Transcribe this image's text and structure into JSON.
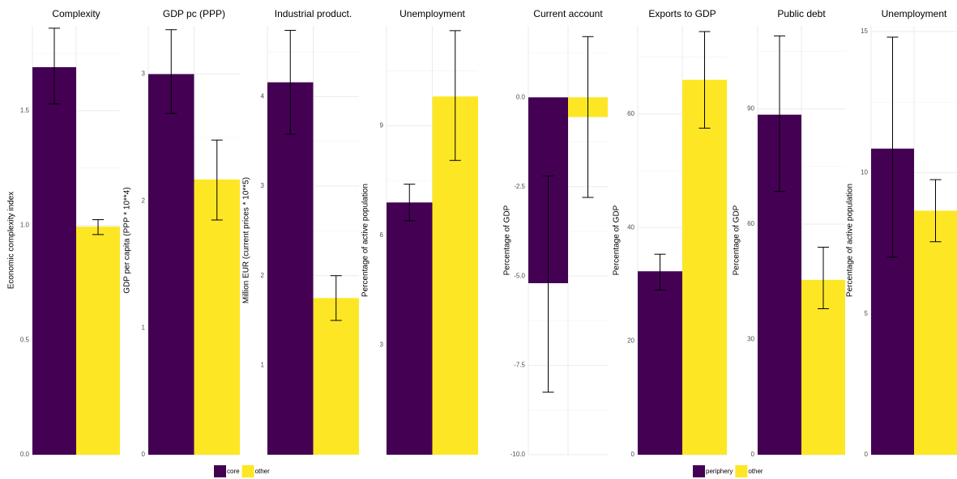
{
  "chart_data": [
    {
      "type": "bar",
      "title": "Complexity",
      "ylabel": "Economic complexity index",
      "ylim": [
        0,
        1.87
      ],
      "yticks": [
        {
          "value": 0,
          "label": "0.0"
        },
        {
          "value": 0.5,
          "label": "0.5"
        },
        {
          "value": 1,
          "label": "1.0"
        },
        {
          "value": 1.5,
          "label": "1.5"
        }
      ],
      "grid": true,
      "series": [
        {
          "name": "core",
          "color": "#440154",
          "values": [
            1.69
          ],
          "error_low": [
            1.53
          ],
          "error_high": [
            1.86
          ]
        },
        {
          "name": "other",
          "color": "#FDE725",
          "values": [
            0.995
          ],
          "error_low": [
            0.96
          ],
          "error_high": [
            1.025
          ]
        }
      ]
    },
    {
      "type": "bar",
      "title": "GDP pc (PPP)",
      "ylabel": "GDP per capita (PPP * 10**4)",
      "ylim": [
        0,
        3.38
      ],
      "yticks": [
        0,
        1,
        2,
        3
      ],
      "grid": true,
      "series": [
        {
          "name": "core",
          "color": "#440154",
          "values": [
            3.0
          ],
          "error_low": [
            2.69
          ],
          "error_high": [
            3.35
          ]
        },
        {
          "name": "other",
          "color": "#FDE725",
          "values": [
            2.17
          ],
          "error_low": [
            1.85
          ],
          "error_high": [
            2.48
          ]
        }
      ]
    },
    {
      "type": "bar",
      "title": "Industrial product.",
      "ylabel": "Million EUR (current prices * 10**5)",
      "ylim": [
        0,
        4.79
      ],
      "yticks": [
        1,
        2,
        3,
        4
      ],
      "grid": true,
      "series": [
        {
          "name": "core",
          "color": "#440154",
          "values": [
            4.16
          ],
          "error_low": [
            3.58
          ],
          "error_high": [
            4.74
          ]
        },
        {
          "name": "other",
          "color": "#FDE725",
          "values": [
            1.75
          ],
          "error_low": [
            1.5
          ],
          "error_high": [
            2.0
          ]
        }
      ]
    },
    {
      "type": "bar",
      "title": "Unemployment",
      "ylabel": "Percentage of active population",
      "ylim": [
        0,
        11.73
      ],
      "yticks": [
        3,
        6,
        9
      ],
      "grid": true,
      "series": [
        {
          "name": "core",
          "color": "#440154",
          "values": [
            6.9
          ],
          "error_low": [
            6.4
          ],
          "error_high": [
            7.4
          ]
        },
        {
          "name": "other",
          "color": "#FDE725",
          "values": [
            9.8
          ],
          "error_low": [
            8.05
          ],
          "error_high": [
            11.6
          ]
        }
      ]
    },
    {
      "type": "bar",
      "title": "Current account",
      "ylabel": "Percentage of GDP",
      "ylim": [
        -10,
        2.0
      ],
      "yticks": [
        {
          "value": -10,
          "label": "-10.0"
        },
        {
          "value": -7.5,
          "label": "-7.5"
        },
        {
          "value": -5,
          "label": "-5.0"
        },
        {
          "value": -2.5,
          "label": "-2.5"
        },
        {
          "value": 0,
          "label": "0.0"
        }
      ],
      "grid": true,
      "series": [
        {
          "name": "periphery",
          "color": "#440154",
          "values": [
            -5.2
          ],
          "error_low": [
            -8.25
          ],
          "error_high": [
            -2.2
          ]
        },
        {
          "name": "other",
          "color": "#FDE725",
          "values": [
            -0.55
          ],
          "error_low": [
            -2.8
          ],
          "error_high": [
            1.7
          ]
        }
      ]
    },
    {
      "type": "bar",
      "title": "Exports to GDP",
      "ylabel": "Percentage of GDP",
      "ylim": [
        0,
        75.5
      ],
      "yticks": [
        0,
        20,
        40,
        60
      ],
      "grid": true,
      "series": [
        {
          "name": "periphery",
          "color": "#440154",
          "values": [
            32.3
          ],
          "error_low": [
            29.0
          ],
          "error_high": [
            35.3
          ]
        },
        {
          "name": "other",
          "color": "#FDE725",
          "values": [
            66.0
          ],
          "error_low": [
            57.5
          ],
          "error_high": [
            74.5
          ]
        }
      ]
    },
    {
      "type": "bar",
      "title": "Public debt",
      "ylabel": "Percentage of GDP",
      "ylim": [
        0,
        111.6
      ],
      "yticks": [
        0,
        30,
        60,
        90
      ],
      "grid": true,
      "series": [
        {
          "name": "periphery",
          "color": "#440154",
          "values": [
            88.5
          ],
          "error_low": [
            68.5
          ],
          "error_high": [
            109
          ]
        },
        {
          "name": "other",
          "color": "#FDE725",
          "values": [
            45.5
          ],
          "error_low": [
            38
          ],
          "error_high": [
            54
          ]
        }
      ]
    },
    {
      "type": "bar",
      "title": "Unemployment",
      "ylabel": "Percentage of active population",
      "ylim": [
        0,
        15.2
      ],
      "yticks": [
        0,
        5,
        10,
        15
      ],
      "grid": true,
      "series": [
        {
          "name": "periphery",
          "color": "#440154",
          "values": [
            10.85
          ],
          "error_low": [
            7.0
          ],
          "error_high": [
            14.8
          ]
        },
        {
          "name": "other",
          "color": "#FDE725",
          "values": [
            8.65
          ],
          "error_low": [
            7.55
          ],
          "error_high": [
            9.75
          ]
        }
      ]
    }
  ]
}
